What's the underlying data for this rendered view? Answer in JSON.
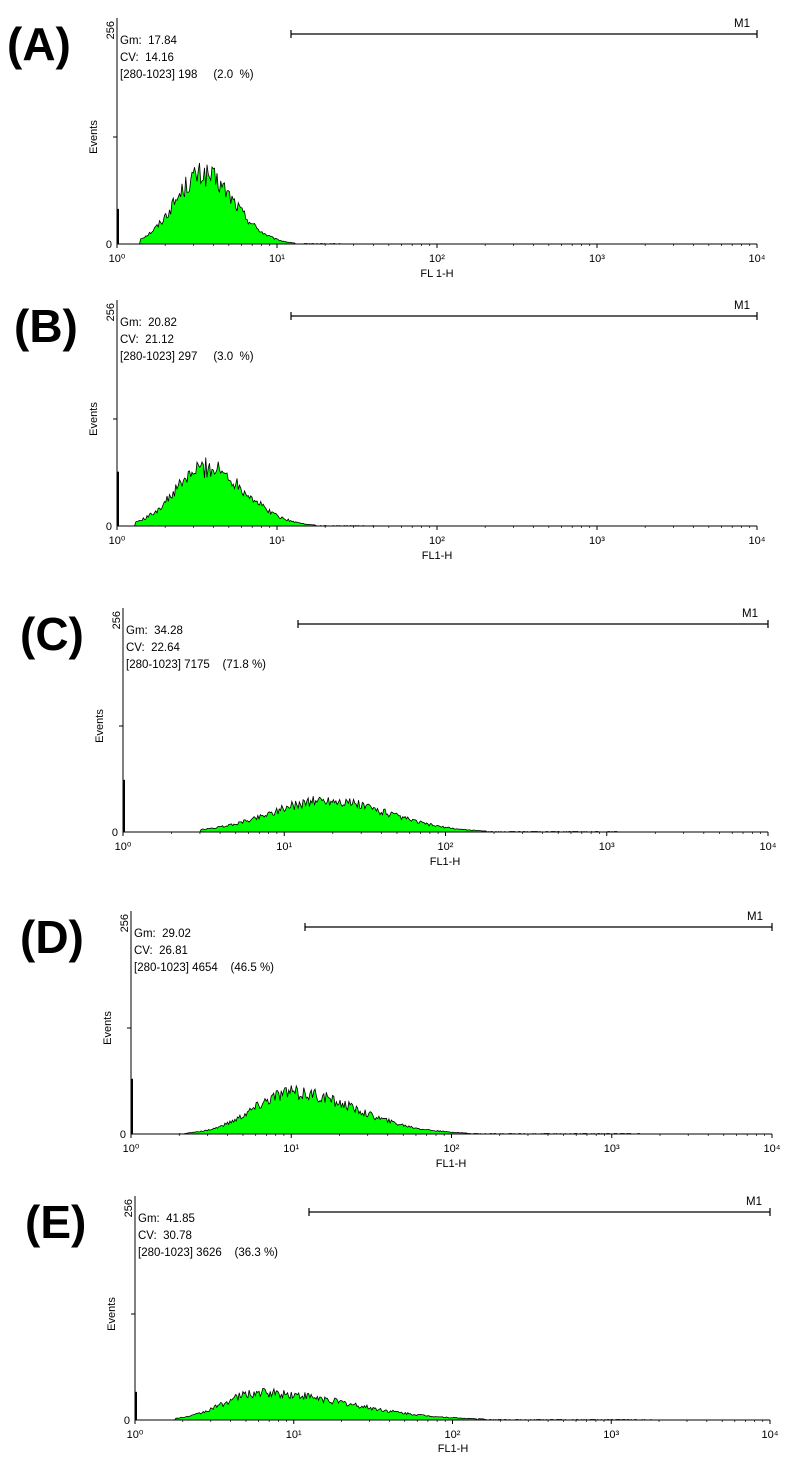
{
  "colors": {
    "fill": "#00ff00",
    "outline": "#000000",
    "axis": "#000000",
    "background": "#ffffff"
  },
  "chart_data": [
    {
      "type": "area",
      "panel": "(A)",
      "xlabel": "FL 1-H",
      "ylabel": "Events",
      "xscale": "log",
      "xlim": [
        1,
        10000
      ],
      "ylim": [
        0,
        256
      ],
      "xticks": [
        "10⁰",
        "10¹",
        "10²",
        "10³",
        "10⁴"
      ],
      "yticks": [
        "0",
        "256"
      ],
      "stats": [
        "Gm:  17.84",
        "CV:  14.16",
        "[280-1023] 198     (2.0  %)"
      ],
      "marker": {
        "label": "M1",
        "range": [
          12,
          10000
        ]
      },
      "histogram": {
        "peak_x": 3.4,
        "peak_y": 83,
        "sigma_log": 0.17,
        "tail_log": 0.2,
        "min_x": 1.4,
        "max_x": 25,
        "spike_y": 42
      }
    },
    {
      "type": "area",
      "panel": "(B)",
      "xlabel": "FL1-H",
      "ylabel": "Events",
      "xscale": "log",
      "xlim": [
        1,
        10000
      ],
      "ylim": [
        0,
        256
      ],
      "xticks": [
        "10⁰",
        "10¹",
        "10²",
        "10³",
        "10⁴"
      ],
      "yticks": [
        "0",
        "256"
      ],
      "stats": [
        "Gm:  20.82",
        "CV:  21.12",
        "[280-1023] 297     (3.0  %)"
      ],
      "marker": {
        "label": "M1",
        "range": [
          12,
          10000
        ]
      },
      "histogram": {
        "peak_x": 3.6,
        "peak_y": 70,
        "sigma_log": 0.19,
        "tail_log": 0.24,
        "min_x": 1.3,
        "max_x": 40,
        "spike_y": 65
      }
    },
    {
      "type": "area",
      "panel": "(C)",
      "xlabel": "FL1-H",
      "ylabel": "Events",
      "xscale": "log",
      "xlim": [
        1,
        10000
      ],
      "ylim": [
        0,
        256
      ],
      "xticks": [
        "10⁰",
        "10¹",
        "10²",
        "10³",
        "10⁴"
      ],
      "yticks": [
        "0",
        "256"
      ],
      "stats": [
        "Gm:  34.28",
        "CV:  22.64",
        "[280-1023] 7175    (71.8 %)"
      ],
      "marker": {
        "label": "M1",
        "range": [
          12,
          10000
        ]
      },
      "histogram": {
        "peak_x": 18,
        "peak_y": 38,
        "sigma_log": 0.34,
        "tail_log": 0.38,
        "min_x": 3,
        "max_x": 1200,
        "spike_y": 63
      }
    },
    {
      "type": "area",
      "panel": "(D)",
      "xlabel": "FL1-H",
      "ylabel": "Events",
      "xscale": "log",
      "xlim": [
        1,
        10000
      ],
      "ylim": [
        0,
        256
      ],
      "xticks": [
        "10⁰",
        "10¹",
        "10²",
        "10³",
        "10⁴"
      ],
      "yticks": [
        "0",
        "256"
      ],
      "stats": [
        "Gm:  29.02",
        "CV:  26.81",
        "[280-1023] 4654    (46.5 %)"
      ],
      "marker": {
        "label": "M1",
        "range": [
          12,
          10000
        ]
      },
      "histogram": {
        "peak_x": 10,
        "peak_y": 50,
        "sigma_log": 0.24,
        "tail_log": 0.4,
        "min_x": 2,
        "max_x": 1500,
        "spike_y": 67
      }
    },
    {
      "type": "area",
      "panel": "(E)",
      "xlabel": "FL1-H",
      "ylabel": "Events",
      "xscale": "log",
      "xlim": [
        1,
        10000
      ],
      "ylim": [
        0,
        256
      ],
      "xticks": [
        "10⁰",
        "10¹",
        "10²",
        "10³",
        "10⁴"
      ],
      "yticks": [
        "0",
        "256"
      ],
      "stats": [
        "Gm:  41.85",
        "CV:  30.78",
        "[280-1023] 3626    (36.3 %)"
      ],
      "marker": {
        "label": "M1",
        "range": [
          12,
          10000
        ]
      },
      "histogram": {
        "peak_x": 6,
        "peak_y": 33,
        "sigma_log": 0.22,
        "tail_log": 0.55,
        "min_x": 1.8,
        "max_x": 1800,
        "spike_y": 34
      }
    }
  ]
}
